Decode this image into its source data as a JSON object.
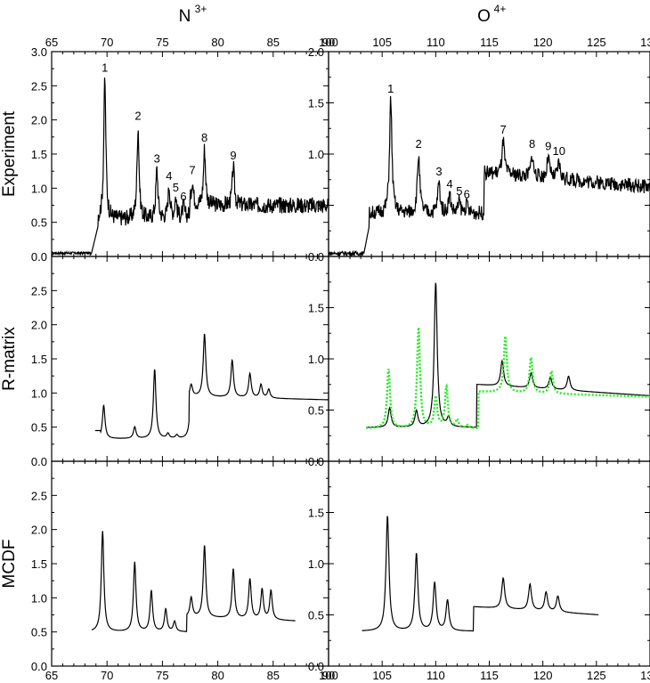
{
  "chart_data": [
    {
      "type": "line",
      "panel": "N-experiment",
      "title": "N",
      "title_sup": "3+",
      "ylabel": "Experiment",
      "xlim": [
        65,
        90
      ],
      "ylim": [
        0,
        3.0
      ],
      "xticks": [
        65,
        70,
        75,
        80,
        85,
        90
      ],
      "xtick_labels": [
        "65",
        "70",
        "75",
        "80",
        "85",
        "90"
      ],
      "yticks": [
        0,
        0.5,
        1.0,
        1.5,
        2.0,
        2.5,
        3.0
      ],
      "ytick_labels": [
        "0.0",
        "0.5",
        "1.0",
        "1.5",
        "2.0",
        "2.5",
        "3.0"
      ],
      "baseline": 0.05,
      "baseline_from": 65,
      "onset": [
        68.6,
        69.2
      ],
      "onset_level": 0.45,
      "noise_level": 0.55,
      "noise_amp": 0.12,
      "noise_to": 90,
      "high_level_from": 77.5,
      "high_level": 0.75,
      "peaks": [
        {
          "x": 69.8,
          "y": 2.6,
          "label": "1"
        },
        {
          "x": 72.8,
          "y": 1.9,
          "label": "2"
        },
        {
          "x": 74.5,
          "y": 1.27,
          "label": "3"
        },
        {
          "x": 75.6,
          "y": 1.02,
          "label": "4"
        },
        {
          "x": 76.2,
          "y": 0.85,
          "label": "5"
        },
        {
          "x": 76.9,
          "y": 0.72,
          "label": "6"
        },
        {
          "x": 77.7,
          "y": 1.1,
          "label": "7"
        },
        {
          "x": 78.8,
          "y": 1.58,
          "label": "8"
        },
        {
          "x": 81.4,
          "y": 1.32,
          "label": "9"
        }
      ]
    },
    {
      "type": "line",
      "panel": "N-rmatrix",
      "ylabel": "R-matrix",
      "xlim": [
        65,
        90
      ],
      "ylim": [
        0,
        3.0
      ],
      "yticks": [
        0,
        0.5,
        1.0,
        1.5,
        2.0,
        2.5
      ],
      "ytick_labels": [
        "0.0",
        "0.5",
        "1.0",
        "1.5",
        "2.0",
        "2.5"
      ],
      "onset": 68.9,
      "onset_level": 0.45,
      "base_level": 0.33,
      "base_to": 77.4,
      "step_level": 0.95,
      "step_to": 90,
      "end_level": 0.9,
      "peaks": [
        {
          "x": 69.7,
          "y": 0.82
        },
        {
          "x": 72.5,
          "y": 0.5
        },
        {
          "x": 74.3,
          "y": 1.35
        },
        {
          "x": 75.5,
          "y": 0.4
        },
        {
          "x": 76.3,
          "y": 0.38
        },
        {
          "x": 77.6,
          "y": 1.12
        },
        {
          "x": 78.8,
          "y": 1.87
        },
        {
          "x": 81.3,
          "y": 1.48
        },
        {
          "x": 82.9,
          "y": 1.28
        },
        {
          "x": 83.9,
          "y": 1.12
        },
        {
          "x": 84.6,
          "y": 1.05
        }
      ]
    },
    {
      "type": "line",
      "panel": "N-mcdf",
      "ylabel": "MCDF",
      "xlim": [
        65,
        90
      ],
      "ylim": [
        0,
        3.0
      ],
      "xticks": [
        65,
        70,
        75,
        80,
        85,
        90
      ],
      "xtick_labels": [
        "65",
        "70",
        "75",
        "80",
        "85",
        "90"
      ],
      "yticks": [
        0,
        0.5,
        1.0,
        1.5,
        2.0,
        2.5
      ],
      "ytick_labels": [
        "0.0",
        "0.5",
        "1.0",
        "1.5",
        "2.0",
        "2.5"
      ],
      "onset": 68.6,
      "onset_level": 0.4,
      "base_level": 0.5,
      "base_to": 77.2,
      "step_level": 0.72,
      "step_to": 87,
      "end_level": 0.66,
      "peaks": [
        {
          "x": 69.6,
          "y": 1.98
        },
        {
          "x": 72.5,
          "y": 1.52
        },
        {
          "x": 74.0,
          "y": 1.1
        },
        {
          "x": 75.3,
          "y": 0.83
        },
        {
          "x": 76.1,
          "y": 0.65
        },
        {
          "x": 77.6,
          "y": 1.0
        },
        {
          "x": 78.8,
          "y": 1.77
        },
        {
          "x": 81.4,
          "y": 1.42
        },
        {
          "x": 82.9,
          "y": 1.27
        },
        {
          "x": 84.0,
          "y": 1.12
        },
        {
          "x": 84.8,
          "y": 1.1
        }
      ]
    },
    {
      "type": "line",
      "panel": "O-experiment",
      "title": "O",
      "title_sup": "4+",
      "xlim": [
        100,
        130
      ],
      "ylim": [
        0,
        2.0
      ],
      "xticks": [
        100,
        105,
        110,
        115,
        120,
        125,
        130
      ],
      "xtick_labels": [
        "100",
        "105",
        "110",
        "115",
        "120",
        "125",
        "130"
      ],
      "yticks": [
        0,
        0.5,
        1.0,
        1.5,
        2.0
      ],
      "ytick_labels": [
        "0.0",
        "0.5",
        "1.0",
        "1.5",
        "2.0"
      ],
      "baseline": 0.03,
      "baseline_from": 100,
      "onset": [
        103.3,
        103.8
      ],
      "onset_level": 0.3,
      "noise_level": 0.42,
      "noise_amp": 0.07,
      "noise_to": 114,
      "high_level_from": 114.5,
      "high_level": 0.82,
      "end_level": 0.68,
      "peaks": [
        {
          "x": 105.8,
          "y": 1.53,
          "label": "1"
        },
        {
          "x": 108.4,
          "y": 0.99,
          "label": "2"
        },
        {
          "x": 110.3,
          "y": 0.72,
          "label": "3"
        },
        {
          "x": 111.3,
          "y": 0.6,
          "label": "4"
        },
        {
          "x": 112.2,
          "y": 0.53,
          "label": "5"
        },
        {
          "x": 112.9,
          "y": 0.5,
          "label": "6"
        },
        {
          "x": 116.3,
          "y": 1.13,
          "label": "7"
        },
        {
          "x": 119.0,
          "y": 0.99,
          "label": "8"
        },
        {
          "x": 120.5,
          "y": 0.97,
          "label": "9"
        },
        {
          "x": 121.5,
          "y": 0.92,
          "label": "10"
        }
      ]
    },
    {
      "type": "line",
      "panel": "O-rmatrix",
      "xlim": [
        100,
        130
      ],
      "ylim": [
        0,
        2.0
      ],
      "yticks": [
        0,
        0.5,
        1.0,
        1.5
      ],
      "ytick_labels": [
        "0.0",
        "0.5",
        "1.0",
        "1.5"
      ],
      "series": [
        {
          "style": "solid",
          "color": "#000000",
          "onset": 103.5,
          "onset_level": 0.3,
          "base_level": 0.33,
          "base_to": 113.8,
          "step_level": 0.75,
          "step_to": 130,
          "end_level": 0.64,
          "peaks": [
            {
              "x": 105.7,
              "y": 0.52
            },
            {
              "x": 108.2,
              "y": 0.49
            },
            {
              "x": 110.0,
              "y": 1.75
            },
            {
              "x": 111.2,
              "y": 0.42
            },
            {
              "x": 116.2,
              "y": 0.98
            },
            {
              "x": 118.9,
              "y": 0.86
            },
            {
              "x": 120.7,
              "y": 0.82
            },
            {
              "x": 122.4,
              "y": 0.83
            }
          ]
        },
        {
          "style": "dotted",
          "color": "#22ee22",
          "onset": 103.5,
          "onset_level": 0.28,
          "base_level": 0.32,
          "base_to": 114.0,
          "step_level": 0.68,
          "step_to": 130,
          "end_level": 0.63,
          "peaks": [
            {
              "x": 105.6,
              "y": 0.9
            },
            {
              "x": 108.4,
              "y": 1.3
            },
            {
              "x": 110.0,
              "y": 0.62
            },
            {
              "x": 111.0,
              "y": 0.72
            },
            {
              "x": 112.0,
              "y": 0.4
            },
            {
              "x": 113.0,
              "y": 0.35
            },
            {
              "x": 116.5,
              "y": 1.22
            },
            {
              "x": 118.9,
              "y": 1.01
            },
            {
              "x": 120.8,
              "y": 0.88
            }
          ]
        }
      ]
    },
    {
      "type": "line",
      "panel": "O-mcdf",
      "xlim": [
        100,
        130
      ],
      "ylim": [
        0,
        2.0
      ],
      "xticks": [
        100,
        105,
        110,
        115,
        120,
        125,
        130
      ],
      "xtick_labels": [
        "100",
        "105",
        "110",
        "115",
        "120",
        "125",
        "130"
      ],
      "yticks": [
        0,
        0.5,
        1.0,
        1.5
      ],
      "ytick_labels": [
        "0.0",
        "0.5",
        "1.0",
        "1.5"
      ],
      "onset": 103.1,
      "onset_level": 0.34,
      "base_level": 0.34,
      "base_to": 113.5,
      "step_level": 0.58,
      "step_to": 125.2,
      "end_level": 0.5,
      "peaks": [
        {
          "x": 105.5,
          "y": 1.47
        },
        {
          "x": 108.2,
          "y": 1.1
        },
        {
          "x": 109.9,
          "y": 0.81
        },
        {
          "x": 111.1,
          "y": 0.64
        },
        {
          "x": 116.3,
          "y": 0.86
        },
        {
          "x": 118.8,
          "y": 0.8
        },
        {
          "x": 120.3,
          "y": 0.72
        },
        {
          "x": 121.4,
          "y": 0.68
        }
      ]
    }
  ]
}
